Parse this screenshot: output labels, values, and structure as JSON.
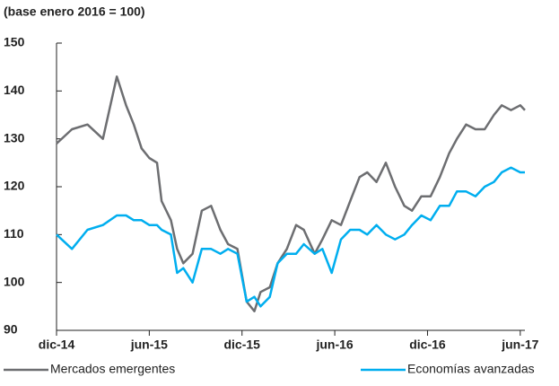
{
  "chart_data": {
    "type": "line",
    "subtitle": "(base enero 2016 = 100)",
    "x": [
      0,
      1.0,
      2.0,
      3.0,
      3.9,
      4.5,
      5.0,
      5.5,
      6.0,
      6.5,
      6.8,
      7.4,
      7.8,
      8.2,
      8.8,
      9.4,
      10.0,
      10.6,
      11.1,
      11.7,
      12.3,
      12.8,
      13.2,
      13.8,
      14.3,
      14.9,
      15.5,
      16.0,
      16.7,
      17.2,
      17.8,
      18.4,
      19.0,
      19.6,
      20.1,
      20.7,
      21.3,
      21.9,
      22.5,
      23.0,
      23.6,
      24.2,
      24.8,
      25.4,
      25.9,
      26.5,
      27.1,
      27.7,
      28.3,
      28.8,
      29.4,
      30.0,
      30.3
    ],
    "series": [
      {
        "name": "Mercados emergentes",
        "color": "#6d6e71",
        "values": [
          129,
          132,
          133,
          130,
          143,
          137,
          133,
          128,
          126,
          125,
          117,
          113,
          107,
          104,
          106,
          115,
          116,
          111,
          108,
          107,
          96,
          94,
          98,
          99,
          104,
          107,
          112,
          111,
          106,
          109,
          113,
          112,
          117,
          122,
          123,
          121,
          125,
          120,
          116,
          115,
          118,
          118,
          122,
          127,
          130,
          133,
          132,
          132,
          135,
          137,
          136,
          137,
          136
        ]
      },
      {
        "name": "Economías avanzadas",
        "color": "#00aeef",
        "values": [
          110,
          107,
          111,
          112,
          114,
          114,
          113,
          113,
          112,
          112,
          111,
          110,
          102,
          103,
          100,
          107,
          107,
          106,
          107,
          106,
          96,
          97,
          95,
          97,
          104,
          106,
          106,
          108,
          106,
          107,
          102,
          109,
          111,
          111,
          110,
          112,
          110,
          109,
          110,
          112,
          114,
          113,
          116,
          116,
          119,
          119,
          118,
          120,
          121,
          123,
          124,
          123,
          123
        ]
      }
    ],
    "xlim": [
      0,
      30.3
    ],
    "xticks": [
      {
        "value": 0,
        "label": "dic-14"
      },
      {
        "value": 6,
        "label": "jun-15"
      },
      {
        "value": 12,
        "label": "dic-15"
      },
      {
        "value": 18,
        "label": "jun-16"
      },
      {
        "value": 24,
        "label": "dic-16"
      },
      {
        "value": 30,
        "label": "jun-17"
      }
    ],
    "ylim": [
      90,
      150
    ],
    "yticks": [
      90,
      100,
      110,
      120,
      130,
      140,
      150
    ],
    "grid": false
  }
}
